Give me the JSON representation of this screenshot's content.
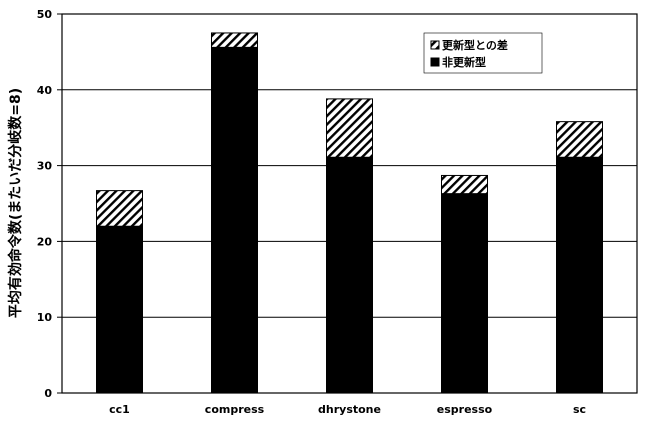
{
  "chart_data": {
    "type": "bar",
    "stacked": true,
    "title": "",
    "xlabel": "",
    "ylabel": "平均有効命令数(またいだ分岐数=8)",
    "categories": [
      "cc1",
      "compress",
      "dhrystone",
      "espresso",
      "sc"
    ],
    "series": [
      {
        "name": "非更新型",
        "values": [
          22.0,
          45.6,
          31.1,
          26.3,
          31.1
        ],
        "color": "#000000"
      },
      {
        "name": "更新型との差",
        "values": [
          4.7,
          1.9,
          7.7,
          2.4,
          4.7
        ],
        "color": "#000000"
      }
    ],
    "ylim": [
      0,
      50
    ],
    "yticks": [
      0,
      10,
      20,
      30,
      40,
      50
    ],
    "grid": true,
    "legend_position": "top-right"
  }
}
